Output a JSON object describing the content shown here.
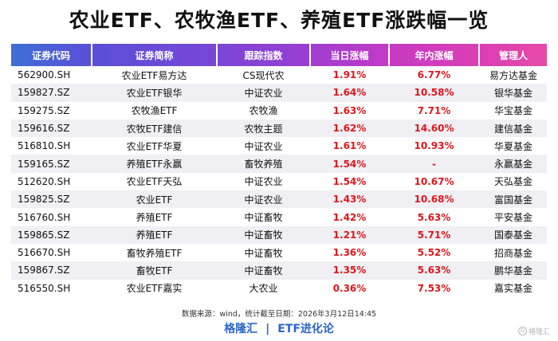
{
  "title": "农业ETF、农牧渔ETF、养殖ETF涨跌幅一览",
  "table": {
    "headers": [
      "证券代码",
      "证券简称",
      "跟踪指数",
      "当日涨幅",
      "年内涨幅",
      "管理人"
    ],
    "rows": [
      [
        "562900.SH",
        "农业ETF易方达",
        "CS现代农",
        "1.91%",
        "6.77%",
        "易方达基金"
      ],
      [
        "159827.SZ",
        "农业ETF银华",
        "中证农业",
        "1.64%",
        "10.58%",
        "银华基金"
      ],
      [
        "159275.SZ",
        "农牧渔ETF",
        "农牧渔",
        "1.63%",
        "7.71%",
        "华宝基金"
      ],
      [
        "159616.SZ",
        "农牧ETF建信",
        "农牧主题",
        "1.62%",
        "14.60%",
        "建信基金"
      ],
      [
        "516810.SH",
        "农业ETF华夏",
        "中证农业",
        "1.61%",
        "10.93%",
        "华夏基金"
      ],
      [
        "159165.SZ",
        "养殖ETF永赢",
        "畜牧养殖",
        "1.54%",
        "-",
        "永赢基金"
      ],
      [
        "512620.SH",
        "农业ETF天弘",
        "中证农业",
        "1.54%",
        "10.67%",
        "天弘基金"
      ],
      [
        "159825.SZ",
        "农业ETF",
        "中证农业",
        "1.43%",
        "10.68%",
        "富国基金"
      ],
      [
        "516760.SH",
        "养殖ETF",
        "中证畜牧",
        "1.42%",
        "5.63%",
        "平安基金"
      ],
      [
        "159865.SZ",
        "养殖ETF",
        "中证畜牧",
        "1.21%",
        "5.71%",
        "国泰基金"
      ],
      [
        "516670.SH",
        "畜牧养殖ETF",
        "中证畜牧",
        "1.36%",
        "5.52%",
        "招商基金"
      ],
      [
        "159867.SZ",
        "畜牧ETF",
        "中证畜牧",
        "1.35%",
        "5.63%",
        "鹏华基金"
      ],
      [
        "516550.SH",
        "农业ETF嘉实",
        "大农业",
        "0.36%",
        "7.53%",
        "嘉实基金"
      ]
    ]
  },
  "source_note": "数据来源：wind，统计截至日期：2026年3月12日14:45",
  "footer": {
    "brand": "格隆汇",
    "separator": "|",
    "column": "ETF进化论"
  },
  "watermark": {
    "icon": "G",
    "text": "格隆汇"
  },
  "colors": {
    "header_start": "#3e6fd6",
    "header_end": "#e54aa6",
    "positive": "#e0161c",
    "stripe": "#efeff4",
    "footer": "#2a66c8"
  }
}
